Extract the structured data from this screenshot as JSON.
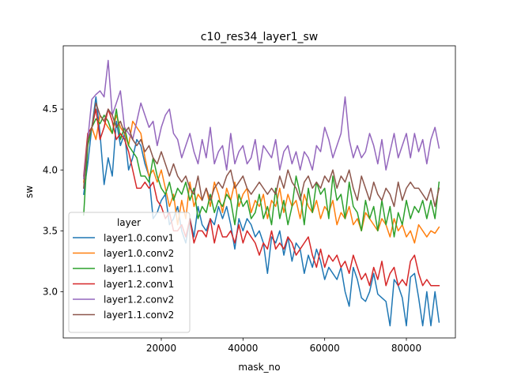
{
  "chart_data": {
    "type": "line",
    "title": "c10_res34_layer1_sw",
    "xlabel": "mask_no",
    "ylabel": "sw",
    "xlim": [
      -4000,
      92000
    ],
    "ylim": [
      2.62,
      5.02
    ],
    "xticks": [
      20000,
      40000,
      60000,
      80000
    ],
    "xtick_labels": [
      "20000",
      "40000",
      "60000",
      "80000"
    ],
    "yticks": [
      3.0,
      3.5,
      4.0,
      4.5
    ],
    "ytick_labels": [
      "3.0",
      "3.5",
      "4.0",
      "4.5"
    ],
    "grid": false,
    "legend": {
      "title": "layer",
      "placement": "lower-left"
    },
    "x": [
      1000,
      2000,
      3000,
      4000,
      5000,
      6000,
      7000,
      8000,
      9000,
      10000,
      11000,
      12000,
      13000,
      14000,
      15000,
      16000,
      17000,
      18000,
      19000,
      20000,
      21000,
      22000,
      23000,
      24000,
      25000,
      26000,
      27000,
      28000,
      29000,
      30000,
      31000,
      32000,
      33000,
      34000,
      35000,
      36000,
      37000,
      38000,
      39000,
      40000,
      41000,
      42000,
      43000,
      44000,
      45000,
      46000,
      47000,
      48000,
      49000,
      50000,
      51000,
      52000,
      53000,
      54000,
      55000,
      56000,
      57000,
      58000,
      59000,
      60000,
      61000,
      62000,
      63000,
      64000,
      65000,
      66000,
      67000,
      68000,
      69000,
      70000,
      71000,
      72000,
      73000,
      74000,
      75000,
      76000,
      77000,
      78000,
      79000,
      80000,
      81000,
      82000,
      83000,
      84000,
      85000,
      86000,
      87000,
      88000
    ],
    "series": [
      {
        "name": "layer1.0.conv1",
        "color": "#1f77b4",
        "values": [
          3.8,
          4.05,
          4.35,
          4.6,
          4.3,
          3.88,
          4.1,
          3.95,
          4.4,
          4.2,
          4.3,
          4.0,
          4.1,
          4.25,
          4.2,
          4.05,
          3.95,
          3.6,
          3.65,
          3.75,
          3.8,
          3.55,
          3.6,
          3.7,
          3.5,
          3.4,
          3.6,
          3.45,
          3.7,
          3.55,
          3.5,
          3.6,
          3.55,
          3.7,
          3.6,
          3.7,
          3.55,
          3.35,
          3.6,
          3.5,
          3.6,
          3.55,
          3.45,
          3.5,
          3.4,
          3.15,
          3.45,
          3.4,
          3.5,
          3.3,
          3.45,
          3.25,
          3.4,
          3.35,
          3.15,
          3.3,
          3.2,
          3.35,
          3.25,
          3.1,
          3.2,
          3.15,
          3.1,
          3.2,
          3.0,
          2.88,
          3.2,
          3.1,
          2.95,
          2.92,
          3.0,
          3.15,
          2.98,
          2.95,
          2.92,
          2.72,
          3.1,
          3.05,
          2.95,
          2.72,
          3.12,
          3.15,
          2.95,
          2.72,
          3.0,
          2.72,
          3.0,
          2.75
        ]
      },
      {
        "name": "layer1.0.conv2",
        "color": "#ff7f0e",
        "values": [
          3.9,
          4.2,
          4.35,
          4.25,
          4.45,
          4.4,
          4.35,
          4.3,
          4.45,
          4.35,
          4.3,
          4.2,
          4.4,
          4.35,
          4.3,
          4.1,
          3.95,
          4.0,
          3.9,
          4.0,
          3.85,
          3.7,
          3.8,
          3.55,
          3.75,
          3.6,
          3.9,
          3.7,
          3.8,
          3.75,
          3.85,
          3.7,
          3.9,
          3.8,
          3.65,
          3.85,
          3.75,
          3.9,
          3.7,
          3.8,
          3.85,
          3.65,
          3.75,
          3.7,
          3.8,
          3.6,
          3.75,
          3.7,
          3.85,
          3.65,
          3.8,
          3.7,
          3.75,
          3.6,
          3.8,
          3.7,
          3.65,
          3.75,
          3.6,
          3.7,
          3.65,
          3.75,
          3.55,
          3.65,
          3.6,
          3.7,
          3.55,
          3.6,
          3.5,
          3.65,
          3.6,
          3.55,
          3.5,
          3.6,
          3.55,
          3.45,
          3.6,
          3.5,
          3.55,
          3.45,
          3.5,
          3.4,
          3.55,
          3.5,
          3.45,
          3.5,
          3.48,
          3.53
        ]
      },
      {
        "name": "layer1.1.conv1",
        "color": "#2ca02c",
        "values": [
          3.63,
          4.2,
          4.35,
          4.42,
          4.38,
          4.45,
          4.4,
          4.3,
          4.5,
          4.25,
          4.35,
          4.2,
          4.15,
          4.1,
          3.95,
          3.95,
          3.9,
          4.1,
          3.95,
          3.85,
          3.8,
          3.9,
          3.75,
          3.85,
          3.8,
          3.9,
          3.75,
          3.85,
          3.6,
          3.7,
          3.65,
          3.8,
          3.65,
          3.75,
          3.7,
          3.8,
          3.75,
          3.55,
          3.8,
          3.7,
          3.75,
          3.6,
          3.65,
          3.8,
          3.6,
          3.7,
          3.55,
          3.85,
          3.6,
          3.75,
          3.55,
          3.7,
          3.95,
          3.8,
          3.55,
          3.85,
          3.65,
          3.9,
          3.8,
          3.85,
          3.6,
          3.95,
          3.75,
          3.8,
          3.6,
          3.9,
          3.7,
          3.65,
          3.5,
          3.75,
          3.6,
          3.7,
          3.5,
          3.75,
          3.55,
          3.7,
          3.45,
          3.65,
          3.55,
          3.75,
          3.6,
          3.7,
          3.65,
          3.75,
          3.6,
          3.75,
          3.6,
          3.9
        ]
      },
      {
        "name": "layer1.2.conv1",
        "color": "#d62728",
        "values": [
          3.95,
          4.3,
          4.35,
          4.5,
          4.25,
          4.35,
          4.5,
          4.4,
          4.25,
          4.3,
          4.25,
          4.15,
          4.0,
          3.85,
          3.85,
          3.9,
          3.85,
          3.9,
          3.75,
          3.7,
          3.6,
          3.65,
          3.5,
          3.5,
          3.55,
          3.45,
          3.6,
          3.4,
          3.5,
          3.5,
          3.45,
          3.6,
          3.4,
          3.55,
          3.45,
          3.45,
          3.5,
          3.4,
          3.55,
          3.4,
          3.5,
          3.45,
          3.4,
          3.3,
          3.4,
          3.35,
          3.5,
          3.35,
          3.4,
          3.35,
          3.45,
          3.4,
          3.3,
          3.35,
          3.4,
          3.45,
          3.3,
          3.2,
          3.35,
          3.2,
          3.3,
          3.25,
          3.3,
          3.2,
          3.25,
          3.15,
          3.3,
          3.2,
          3.1,
          3.15,
          3.05,
          3.2,
          3.1,
          3.25,
          3.05,
          3.15,
          3.2,
          3.05,
          3.1,
          3.05,
          3.25,
          3.3,
          3.15,
          3.05,
          3.1,
          3.05,
          3.05,
          3.05
        ]
      },
      {
        "name": "layer1.2.conv2",
        "color": "#9467bd",
        "values": [
          3.93,
          4.25,
          4.58,
          4.62,
          4.65,
          4.6,
          4.9,
          4.45,
          4.55,
          4.65,
          4.35,
          4.3,
          4.25,
          4.4,
          4.55,
          4.45,
          4.35,
          4.4,
          4.2,
          4.35,
          4.45,
          4.5,
          4.3,
          4.25,
          4.1,
          4.2,
          4.3,
          4.15,
          4.05,
          4.25,
          4.1,
          4.35,
          4.05,
          4.15,
          4.2,
          4.0,
          4.3,
          4.05,
          4.15,
          4.2,
          4.05,
          4.1,
          4.25,
          4.0,
          4.2,
          4.15,
          4.1,
          4.25,
          4.0,
          4.15,
          4.2,
          4.05,
          4.15,
          4.0,
          4.15,
          4.1,
          4.0,
          4.2,
          4.15,
          4.35,
          4.25,
          4.1,
          4.2,
          4.3,
          4.6,
          4.25,
          4.1,
          4.2,
          4.1,
          4.15,
          4.3,
          4.2,
          4.05,
          4.25,
          4.0,
          4.15,
          4.3,
          4.1,
          4.2,
          4.3,
          4.1,
          4.3,
          4.15,
          4.25,
          4.05,
          4.25,
          4.35,
          4.18
        ]
      },
      {
        "name": "layer1.1.conv2",
        "color": "#8c564b",
        "values": [
          3.85,
          4.25,
          4.35,
          4.55,
          4.45,
          4.4,
          4.5,
          4.45,
          4.35,
          4.4,
          4.3,
          4.35,
          4.25,
          4.2,
          4.25,
          4.15,
          4.2,
          4.1,
          4.05,
          4.15,
          4.05,
          3.95,
          4.05,
          3.95,
          3.9,
          3.95,
          3.85,
          3.8,
          3.95,
          3.75,
          3.85,
          3.75,
          3.85,
          3.9,
          3.85,
          3.95,
          4.0,
          3.85,
          3.9,
          3.95,
          3.85,
          3.8,
          3.85,
          3.9,
          3.85,
          3.8,
          3.85,
          3.8,
          3.95,
          3.85,
          4.0,
          3.9,
          3.85,
          3.75,
          3.9,
          3.95,
          3.85,
          3.9,
          3.85,
          3.95,
          3.9,
          4.0,
          3.85,
          3.95,
          3.9,
          4.0,
          3.85,
          3.75,
          3.95,
          3.85,
          3.75,
          3.9,
          3.8,
          3.75,
          3.85,
          3.8,
          3.7,
          3.9,
          3.75,
          3.85,
          3.9,
          3.85,
          3.85,
          3.8,
          3.75,
          3.85,
          3.7,
          3.85
        ]
      }
    ]
  }
}
